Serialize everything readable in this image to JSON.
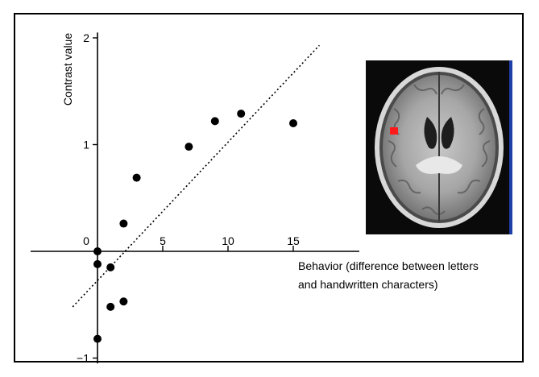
{
  "chart_data": {
    "type": "scatter",
    "ylabel": "Contrast value",
    "xlabel_lines": [
      "Behavior (difference between letters",
      "and handwritten characters)"
    ],
    "x_ticks": [
      0,
      5,
      10,
      15
    ],
    "y_ticks": [
      -1,
      0,
      1,
      2
    ],
    "y_tick_labels": [
      "−1",
      "0",
      "1",
      "2"
    ],
    "xlim": [
      -2.5,
      20
    ],
    "ylim": [
      -1.05,
      2.05
    ],
    "points": [
      {
        "x": 0,
        "y": 0
      },
      {
        "x": 0,
        "y": -0.12
      },
      {
        "x": 0,
        "y": -0.82
      },
      {
        "x": 1,
        "y": -0.15
      },
      {
        "x": 1,
        "y": -0.52
      },
      {
        "x": 2,
        "y": -0.47
      },
      {
        "x": 2,
        "y": 0.26
      },
      {
        "x": 3,
        "y": 0.69
      },
      {
        "x": 7,
        "y": 0.98
      },
      {
        "x": 9,
        "y": 1.22
      },
      {
        "x": 11,
        "y": 1.29
      },
      {
        "x": 15,
        "y": 1.2
      }
    ],
    "fit_line": {
      "style": "dotted",
      "x": [
        -1.9,
        17
      ],
      "y": [
        -0.52,
        1.93
      ]
    }
  },
  "figure": {
    "inset_image": "axial brain MRI slice",
    "highlight_color": "#ff1a1a"
  }
}
